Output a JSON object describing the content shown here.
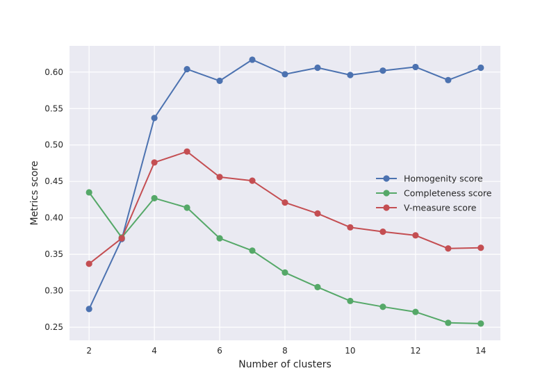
{
  "chart_data": {
    "type": "line",
    "xlabel": "Number of clusters",
    "ylabel": "Metrics score",
    "x": [
      2,
      3,
      4,
      5,
      6,
      7,
      8,
      9,
      10,
      11,
      12,
      13,
      14
    ],
    "xlim": [
      1.4,
      14.6
    ],
    "ylim": [
      0.232,
      0.636
    ],
    "xticks": [
      2,
      4,
      6,
      8,
      10,
      12,
      14
    ],
    "yticks": [
      0.25,
      0.3,
      0.35,
      0.4,
      0.45,
      0.5,
      0.55,
      0.6
    ],
    "xtick_labels": [
      "2",
      "4",
      "6",
      "8",
      "10",
      "12",
      "14"
    ],
    "ytick_labels": [
      "0.25",
      "0.30",
      "0.35",
      "0.40",
      "0.45",
      "0.50",
      "0.55",
      "0.60"
    ],
    "grid": true,
    "legend_position": "center-right",
    "series": [
      {
        "name": "Homogenity score",
        "color": "#4c72b0",
        "values": [
          0.275,
          0.371,
          0.537,
          0.604,
          0.588,
          0.617,
          0.597,
          0.606,
          0.596,
          0.602,
          0.607,
          0.589,
          0.606
        ]
      },
      {
        "name": "Completeness score",
        "color": "#55a868",
        "values": [
          0.435,
          0.373,
          0.427,
          0.414,
          0.372,
          0.355,
          0.325,
          0.305,
          0.286,
          0.278,
          0.271,
          0.256,
          0.255
        ]
      },
      {
        "name": "V-measure score",
        "color": "#c44e52",
        "values": [
          0.337,
          0.372,
          0.476,
          0.491,
          0.456,
          0.451,
          0.421,
          0.406,
          0.387,
          0.381,
          0.376,
          0.358,
          0.359
        ]
      }
    ]
  }
}
